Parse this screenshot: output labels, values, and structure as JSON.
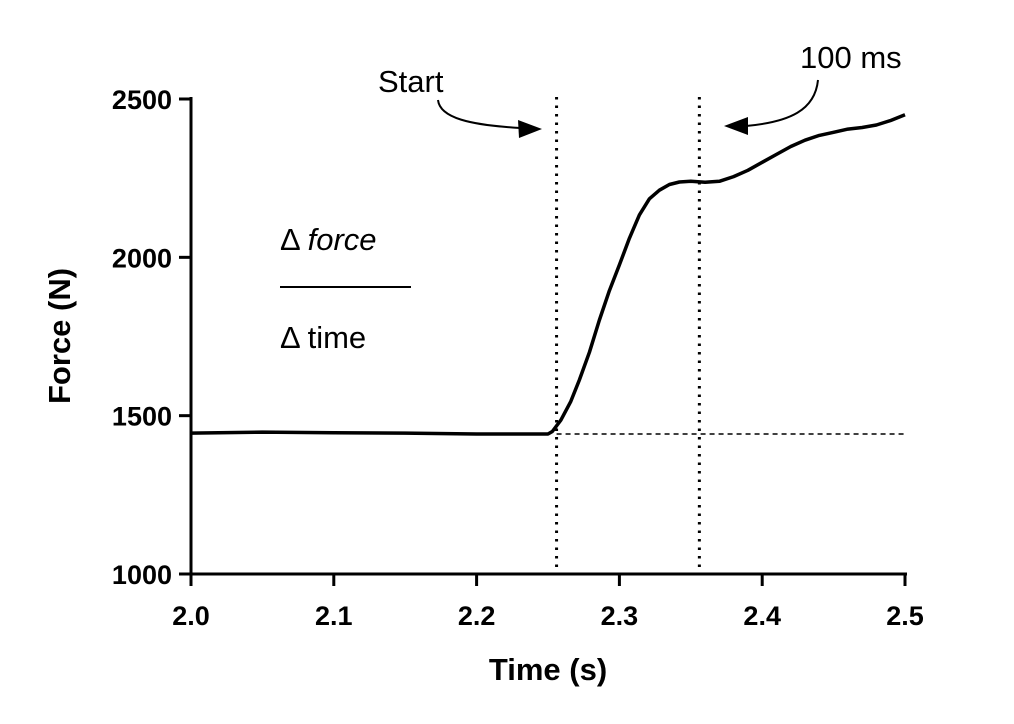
{
  "chart_data": {
    "type": "line",
    "xlabel": "Time (s)",
    "ylabel": "Force (N)",
    "xlim": [
      2.0,
      2.5
    ],
    "ylim": [
      1000,
      2500
    ],
    "xticks": [
      "2.0",
      "2.1",
      "2.2",
      "2.3",
      "2.4",
      "2.5"
    ],
    "yticks": [
      "1000",
      "1500",
      "2000",
      "2500"
    ],
    "grid": false,
    "series": [
      {
        "x": [
          2.0,
          2.05,
          2.1,
          2.15,
          2.2,
          2.25,
          2.253,
          2.259,
          2.266,
          2.272,
          2.279,
          2.286,
          2.293,
          2.3,
          2.307,
          2.314,
          2.321,
          2.328,
          2.335,
          2.342,
          2.35,
          2.36,
          2.37,
          2.38,
          2.39,
          2.4,
          2.41,
          2.42,
          2.43,
          2.44,
          2.45,
          2.46,
          2.47,
          2.48,
          2.49,
          2.5
        ],
        "y": [
          1445,
          1448,
          1446,
          1445,
          1442,
          1442,
          1450,
          1486,
          1545,
          1613,
          1700,
          1802,
          1895,
          1976,
          2060,
          2134,
          2185,
          2212,
          2230,
          2238,
          2240,
          2237,
          2240,
          2255,
          2275,
          2300,
          2325,
          2350,
          2370,
          2385,
          2395,
          2405,
          2410,
          2418,
          2432,
          2450
        ]
      }
    ],
    "reference_lines": [
      {
        "type": "vertical",
        "x": 2.256,
        "style": "dotted"
      },
      {
        "type": "vertical",
        "x": 2.356,
        "style": "dotted"
      },
      {
        "type": "horizontal",
        "y": 1442,
        "from_x": 2.256,
        "to_x": 2.5,
        "style": "dashed"
      }
    ],
    "annotations": {
      "start": "Start",
      "window": "100 ms",
      "numerator": "Δ force",
      "numerator_delta": "Δ",
      "numerator_word": "force",
      "denominator": "Δ time"
    }
  }
}
